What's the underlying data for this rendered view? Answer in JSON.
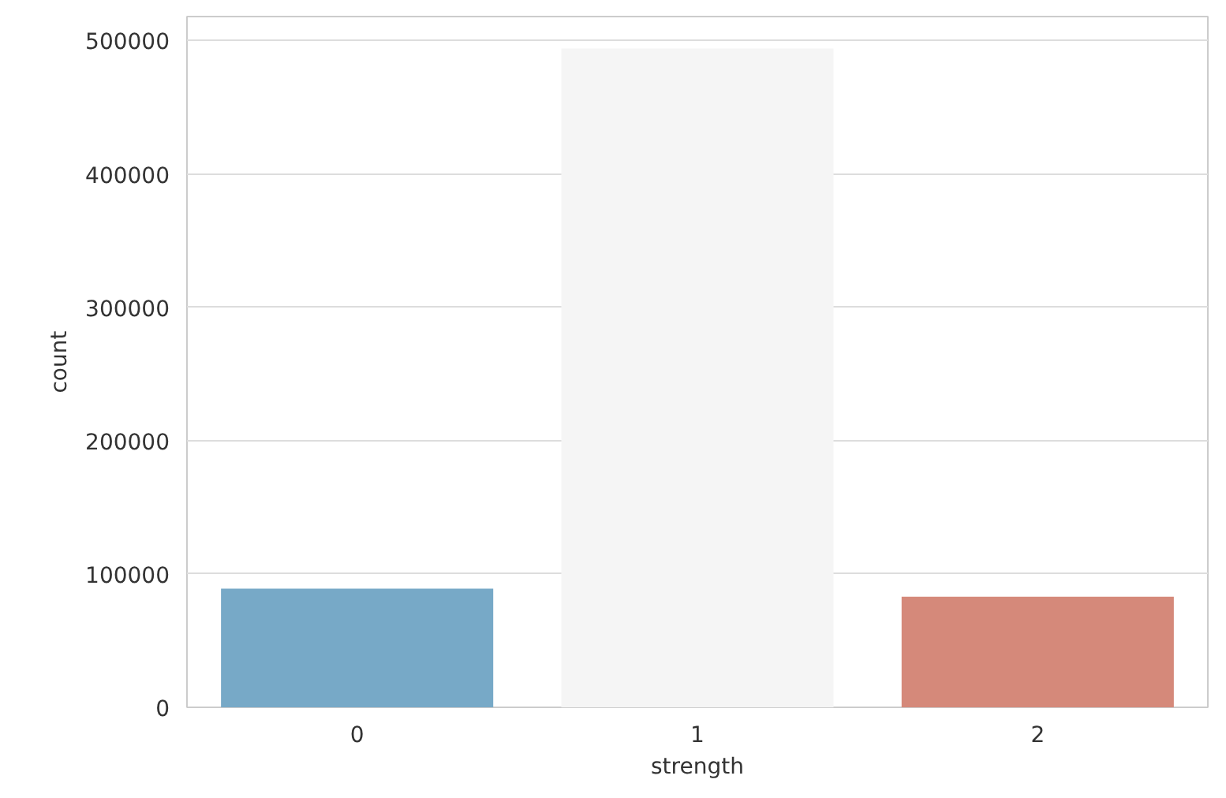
{
  "chart_data": {
    "type": "bar",
    "xlabel": "strength",
    "ylabel": "count",
    "categories": [
      "0",
      "1",
      "2"
    ],
    "values": [
      89000,
      494000,
      83000
    ],
    "colors": [
      "#77a9c7",
      "#f5f5f5",
      "#d5897a"
    ],
    "ylim": [
      0,
      518000
    ],
    "yticks": [
      0,
      100000,
      200000,
      300000,
      400000,
      500000
    ],
    "grid": "y"
  }
}
